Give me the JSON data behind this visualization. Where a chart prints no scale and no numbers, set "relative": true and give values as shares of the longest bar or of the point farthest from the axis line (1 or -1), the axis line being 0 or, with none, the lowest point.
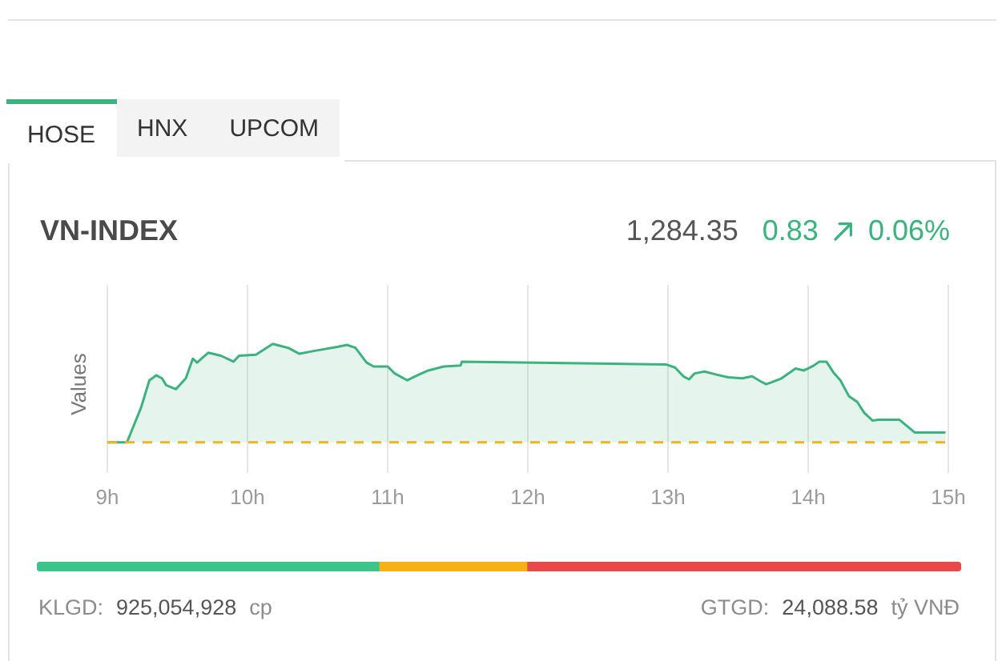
{
  "chart_data": [
    {
      "type": "area",
      "title": "VN-INDEX",
      "ylabel": "Values",
      "relative": true,
      "x": [
        9.0,
        9.14,
        9.24,
        9.3,
        9.35,
        9.39,
        9.42,
        9.49,
        9.56,
        9.61,
        9.64,
        9.72,
        9.81,
        9.9,
        9.94,
        10.06,
        10.18,
        10.29,
        10.37,
        10.48,
        10.64,
        10.71,
        10.77,
        10.85,
        10.9,
        11.0,
        11.05,
        11.14,
        11.21,
        11.29,
        11.4,
        11.52,
        11.53,
        12.99,
        13.05,
        13.11,
        13.15,
        13.19,
        13.26,
        13.34,
        13.43,
        13.53,
        13.6,
        13.66,
        13.7,
        13.74,
        13.81,
        13.91,
        13.97,
        14.04,
        14.08,
        14.13,
        14.18,
        14.23,
        14.29,
        14.35,
        14.4,
        14.46,
        14.5,
        14.65,
        14.76,
        14.98
      ],
      "values": [
        0,
        0,
        0.35,
        0.63,
        0.68,
        0.65,
        0.58,
        0.54,
        0.65,
        0.85,
        0.81,
        0.91,
        0.88,
        0.82,
        0.88,
        0.89,
        1.0,
        0.96,
        0.9,
        0.93,
        0.97,
        0.99,
        0.96,
        0.81,
        0.77,
        0.77,
        0.7,
        0.63,
        0.68,
        0.73,
        0.77,
        0.78,
        0.82,
        0.79,
        0.76,
        0.67,
        0.64,
        0.7,
        0.72,
        0.69,
        0.66,
        0.65,
        0.67,
        0.62,
        0.59,
        0.61,
        0.65,
        0.75,
        0.73,
        0.78,
        0.82,
        0.82,
        0.71,
        0.63,
        0.47,
        0.41,
        0.3,
        0.22,
        0.23,
        0.23,
        0.1,
        0.1
      ],
      "color": "#3cb37f",
      "xlim": [
        9,
        15
      ],
      "xticks": [
        {
          "value": 9,
          "label": "9h"
        },
        {
          "value": 10,
          "label": "10h"
        },
        {
          "value": 11,
          "label": "11h"
        },
        {
          "value": 12,
          "label": "12h"
        },
        {
          "value": 13,
          "label": "13h"
        },
        {
          "value": 14,
          "label": "14h"
        },
        {
          "value": 15,
          "label": "15h"
        }
      ],
      "grid": "x",
      "ref_lines": [
        {
          "axis": "y",
          "value": 0,
          "color": "#f0b323",
          "line_style": "dashed"
        }
      ],
      "annotations": [
        "HOSE",
        "HNX",
        "UPCOM",
        "1,284.35",
        "0.83",
        "0.06%"
      ]
    },
    {
      "type": "bar",
      "orientation": "horizontal",
      "stacked": true,
      "relative": true,
      "categories": [
        null
      ],
      "series": [
        {
          "color": "#3ec48a",
          "values": [
            0.37
          ]
        },
        {
          "color": "#f6b117",
          "values": [
            0.16
          ]
        },
        {
          "color": "#e84a4a",
          "values": [
            0.47
          ]
        }
      ],
      "annotations": [
        "KLGD:",
        "925,054,928",
        "cp",
        "GTGD:",
        "24,088.58",
        "tỷ VNĐ"
      ]
    }
  ]
}
